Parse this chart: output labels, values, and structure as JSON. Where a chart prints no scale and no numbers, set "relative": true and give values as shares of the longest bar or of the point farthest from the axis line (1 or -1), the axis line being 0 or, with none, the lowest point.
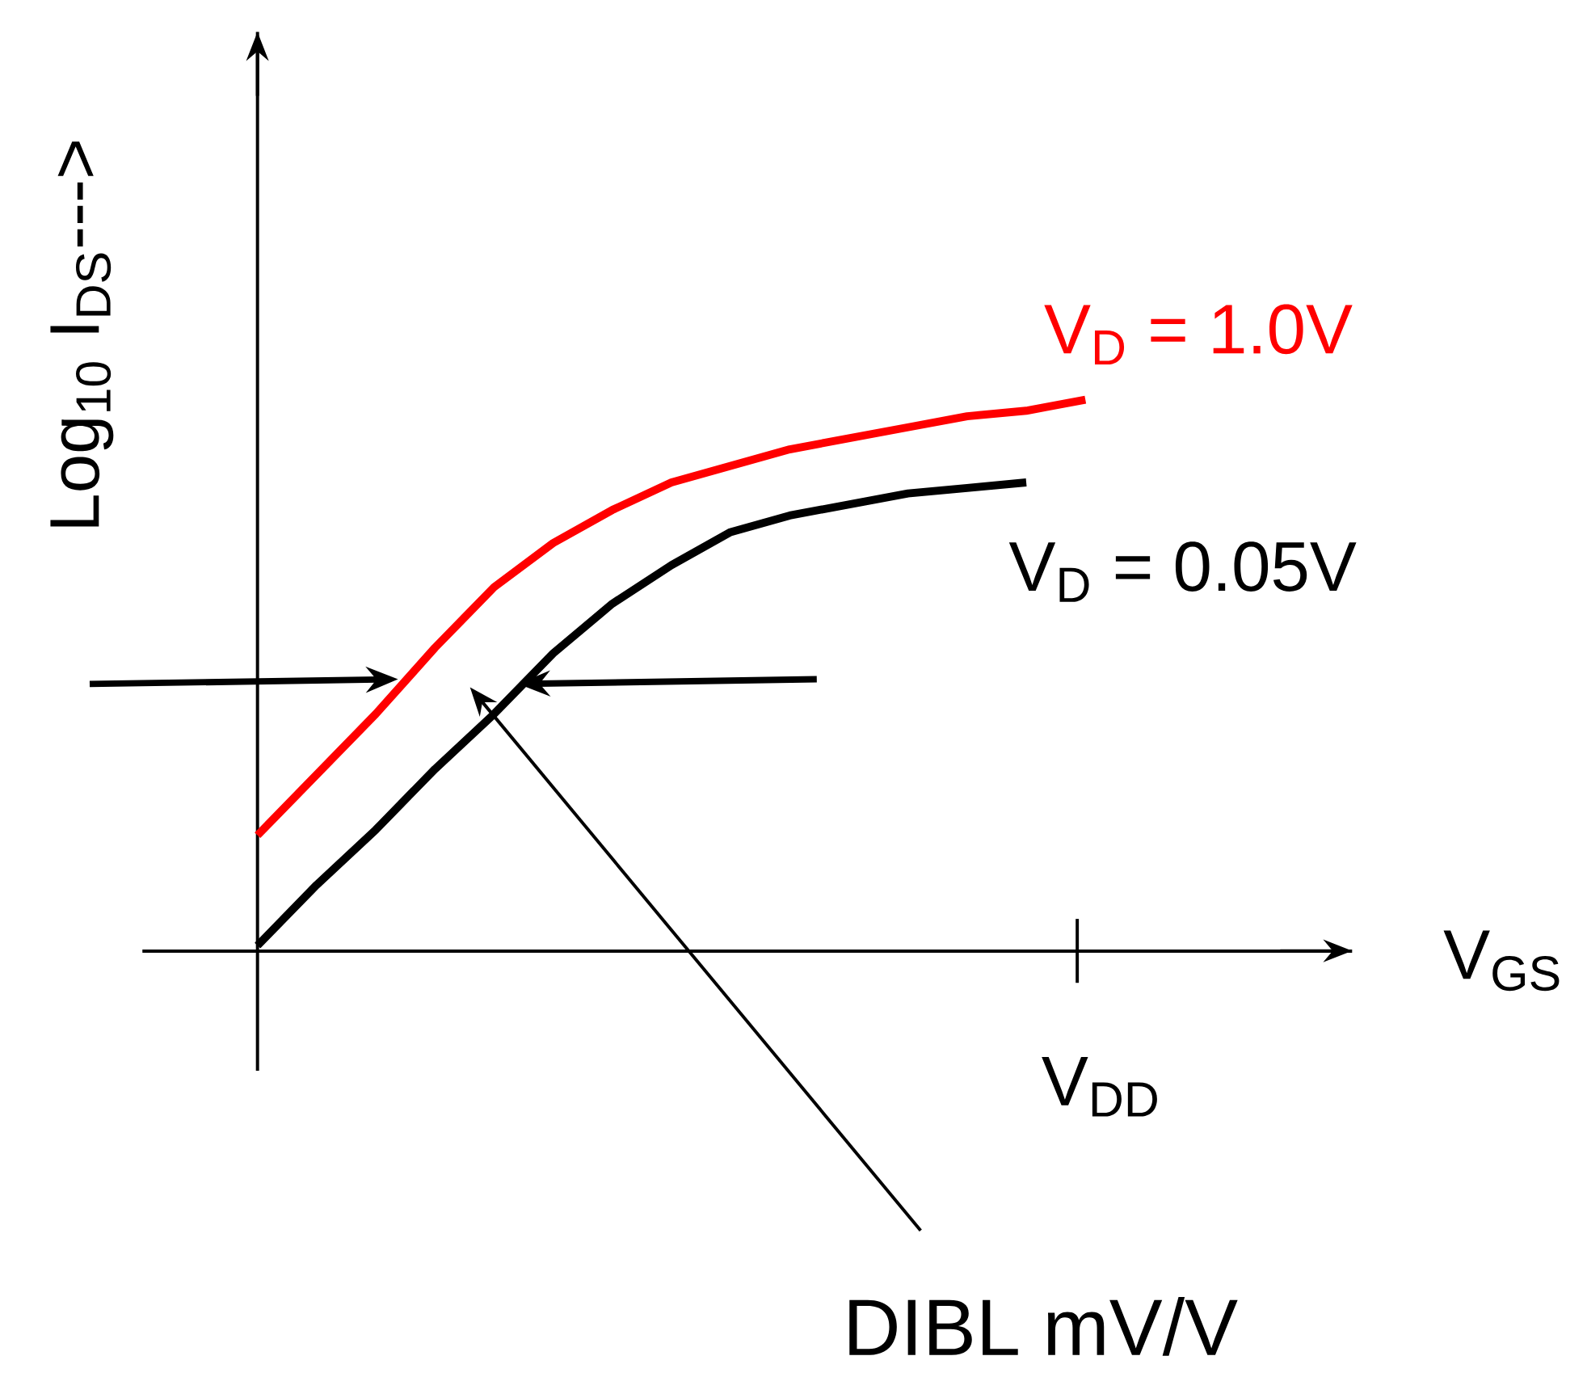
{
  "chart_data": {
    "type": "line",
    "relative": true,
    "xlabel": "V$_{GS}$",
    "ylabel": "Log$_{10}$ I$_{DS}$--->",
    "annotations": [
      "V$_{DD}$",
      "DIBL mV/V"
    ],
    "categories": [
      null,
      null,
      null,
      null,
      null,
      null,
      null,
      null,
      null,
      null,
      null,
      null,
      null,
      null,
      null
    ],
    "series": [
      {
        "name": "V$_{D}$ = 1.0V",
        "color": "#ff0000",
        "values": [
          0.21,
          0.32,
          0.43,
          0.55,
          0.66,
          0.74,
          0.8,
          0.85,
          0.88,
          0.91,
          0.93,
          0.95,
          0.97,
          0.98,
          1.0
        ]
      },
      {
        "name": "V$_{D}$ = 0.05V",
        "color": "#000000",
        "values": [
          0.01,
          0.12,
          0.22,
          0.33,
          0.43,
          0.54,
          0.63,
          0.7,
          0.76,
          0.79,
          0.81,
          0.83,
          0.84,
          0.85,
          null
        ]
      }
    ]
  }
}
